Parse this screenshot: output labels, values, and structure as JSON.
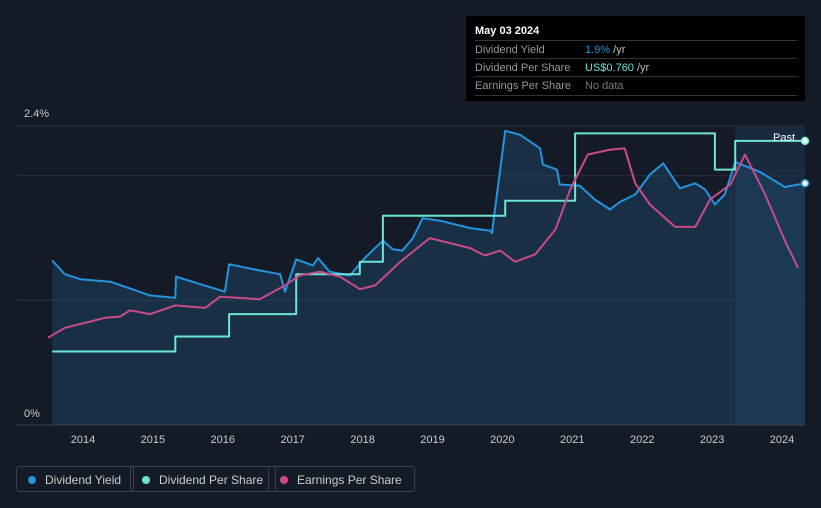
{
  "tooltip": {
    "date": "May 03 2024",
    "rows": [
      {
        "label": "Dividend Yield",
        "value": "1.9%",
        "unit": " /yr",
        "color": "#2394df"
      },
      {
        "label": "Dividend Per Share",
        "value": "US$0.760",
        "unit": " /yr",
        "color": "#6ce5d4"
      },
      {
        "label": "Earnings Per Share",
        "value": "No data",
        "unit": "",
        "color": "#777777"
      }
    ]
  },
  "past_label": "Past",
  "chart_data": {
    "type": "line",
    "yticks": [
      "0%",
      "2.4%"
    ],
    "ylim": [
      0,
      2.4
    ],
    "xlim": [
      2013.4,
      2024.33
    ],
    "xticks": [
      "2014",
      "2015",
      "2016",
      "2017",
      "2018",
      "2019",
      "2020",
      "2021",
      "2022",
      "2023",
      "2024"
    ],
    "forecast_start": 2023.33,
    "series": [
      {
        "name": "Dividend Yield",
        "color": "#2394df",
        "unit": "%",
        "x": [
          2013.56,
          2013.74,
          2013.96,
          2014.39,
          2014.96,
          2015.32,
          2015.33,
          2016.03,
          2016.09,
          2016.53,
          2016.82,
          2016.89,
          2017.05,
          2017.29,
          2017.36,
          2017.53,
          2017.82,
          2018.03,
          2018.29,
          2018.43,
          2018.57,
          2018.72,
          2018.86,
          2019.11,
          2019.54,
          2019.82,
          2019.85,
          2020.04,
          2020.25,
          2020.54,
          2020.58,
          2020.78,
          2020.82,
          2021.11,
          2021.32,
          2021.54,
          2021.68,
          2021.9,
          2022.11,
          2022.3,
          2022.54,
          2022.76,
          2022.9,
          2023.04,
          2023.18,
          2023.33,
          2023.69,
          2024.04,
          2024.33
        ],
        "values": [
          1.32,
          1.21,
          1.17,
          1.15,
          1.04,
          1.02,
          1.19,
          1.07,
          1.29,
          1.24,
          1.21,
          1.07,
          1.33,
          1.28,
          1.34,
          1.23,
          1.2,
          1.34,
          1.48,
          1.41,
          1.4,
          1.5,
          1.66,
          1.64,
          1.58,
          1.56,
          1.54,
          2.36,
          2.33,
          2.22,
          2.09,
          2.05,
          1.93,
          1.92,
          1.81,
          1.73,
          1.79,
          1.85,
          2.01,
          2.1,
          1.9,
          1.94,
          1.89,
          1.77,
          1.85,
          2.11,
          2.03,
          1.91,
          1.94
        ]
      },
      {
        "name": "Dividend Per Share",
        "color": "#6ce5d4",
        "unit": "scaled to yield axis",
        "step": true,
        "x": [
          2013.56,
          2015.32,
          2016.09,
          2016.89,
          2017.05,
          2017.82,
          2017.96,
          2018.29,
          2019.85,
          2020.04,
          2020.82,
          2021.04,
          2022.83,
          2023.04,
          2023.33,
          2024.33
        ],
        "values": [
          0.59,
          0.71,
          0.89,
          0.89,
          1.21,
          1.21,
          1.31,
          1.68,
          1.68,
          1.8,
          1.8,
          2.34,
          2.34,
          2.05,
          2.28,
          2.28
        ]
      },
      {
        "name": "Earnings Per Share",
        "color": "#c94b8c",
        "unit": "scaled",
        "x": [
          2013.5,
          2013.74,
          2014.1,
          2014.31,
          2014.53,
          2014.67,
          2014.96,
          2015.32,
          2015.75,
          2015.96,
          2016.53,
          2016.89,
          2017.1,
          2017.39,
          2017.68,
          2017.96,
          2018.18,
          2018.54,
          2018.96,
          2019.54,
          2019.75,
          2019.97,
          2020.18,
          2020.47,
          2020.76,
          2020.97,
          2021.22,
          2021.54,
          2021.75,
          2021.9,
          2022.11,
          2022.47,
          2022.76,
          2022.97,
          2023.26,
          2023.47,
          2023.76,
          2024.04,
          2024.23
        ],
        "values": [
          0.7,
          0.78,
          0.83,
          0.86,
          0.87,
          0.92,
          0.89,
          0.96,
          0.94,
          1.03,
          1.01,
          1.12,
          1.2,
          1.23,
          1.19,
          1.09,
          1.12,
          1.31,
          1.5,
          1.42,
          1.36,
          1.4,
          1.31,
          1.37,
          1.57,
          1.89,
          2.17,
          2.21,
          2.22,
          1.94,
          1.77,
          1.59,
          1.59,
          1.81,
          1.93,
          2.17,
          1.85,
          1.48,
          1.26
        ]
      }
    ]
  }
}
